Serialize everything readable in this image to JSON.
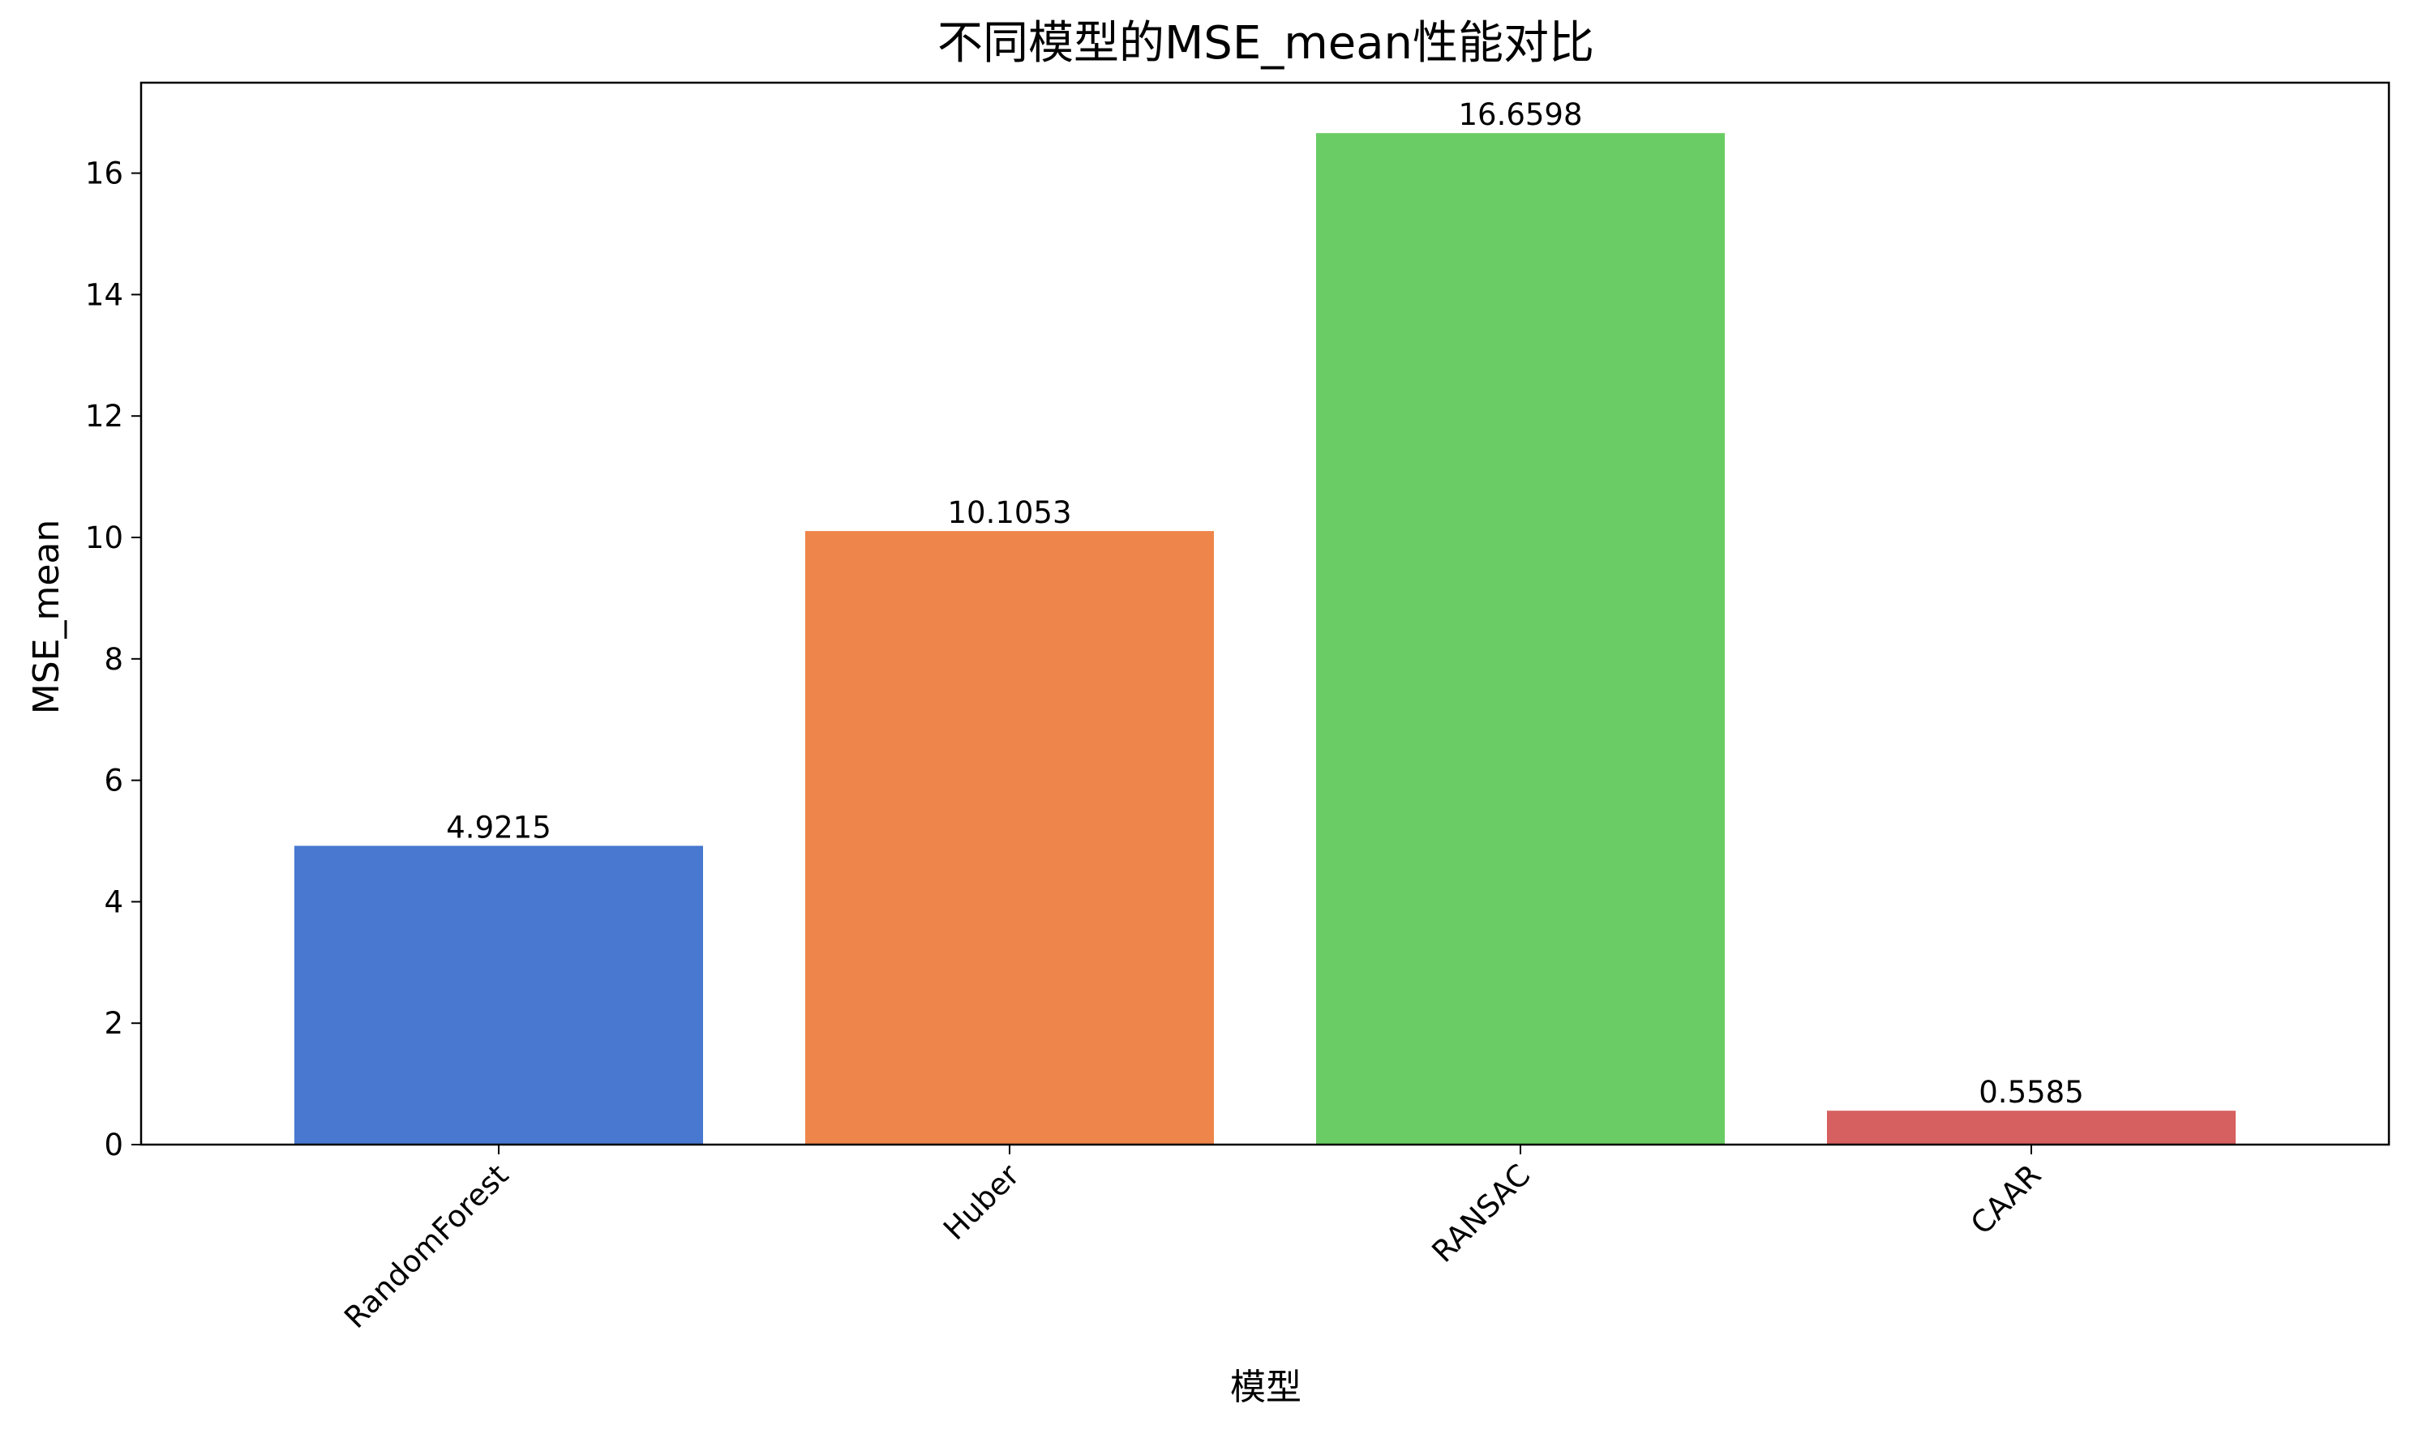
{
  "chart_data": {
    "type": "bar",
    "title": "不同模型的MSE_mean性能对比",
    "xlabel": "模型",
    "ylabel": "MSE_mean",
    "categories": [
      "RandomForest",
      "Huber",
      "RANSAC",
      "CAAR"
    ],
    "values": [
      4.9215,
      10.1053,
      16.6598,
      0.5585
    ],
    "value_labels": [
      "4.9215",
      "10.1053",
      "16.6598",
      "0.5585"
    ],
    "colors": [
      "#4878cf",
      "#ee854a",
      "#6acc64",
      "#d65f5f"
    ],
    "yticks": [
      0,
      2,
      4,
      6,
      8,
      10,
      12,
      14,
      16
    ],
    "ylim": [
      0,
      17.49
    ],
    "grid": false,
    "legend": false
  }
}
